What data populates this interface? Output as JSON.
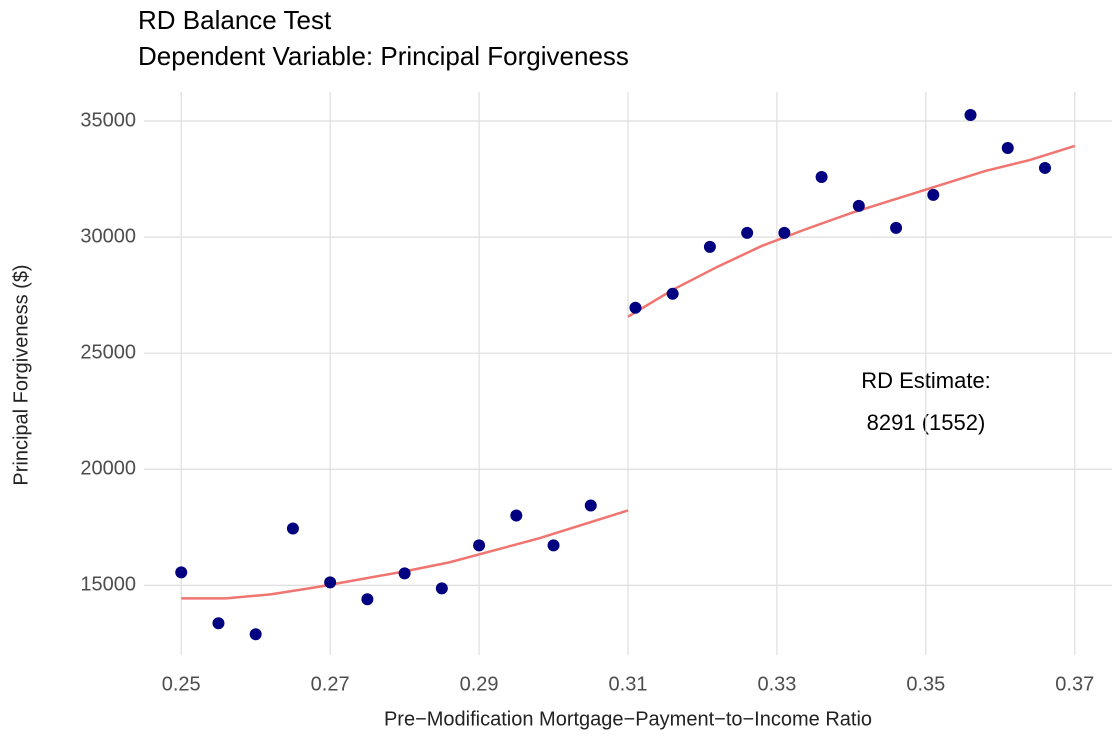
{
  "chart_data": {
    "type": "scatter",
    "title": "RD Balance Test",
    "subtitle": "Dependent Variable: Principal Forgiveness",
    "x_label": "Pre−Modification Mortgage−Payment−to−Income Ratio",
    "y_label": "Principal Forgiveness ($)",
    "annotation": [
      "RD Estimate:",
      "8291 (1552)"
    ],
    "xlim": [
      0.245,
      0.375
    ],
    "ylim": [
      12000,
      36250
    ],
    "xticks": [
      0.25,
      0.27,
      0.29,
      0.31,
      0.33,
      0.35,
      0.37
    ],
    "yticks": [
      15000,
      20000,
      25000,
      30000,
      35000
    ],
    "grid": true,
    "color": "#000080",
    "x": [
      0.25,
      0.255,
      0.26,
      0.265,
      0.27,
      0.275,
      0.28,
      0.285,
      0.29,
      0.295,
      0.3,
      0.305,
      0.311,
      0.316,
      0.321,
      0.326,
      0.331,
      0.336,
      0.341,
      0.346,
      0.351,
      0.356,
      0.361,
      0.366
    ],
    "values": [
      15560,
      13366,
      12892,
      17450,
      15130,
      14400,
      15516,
      14871,
      16720,
      18011,
      16720,
      18441,
      26957,
      27559,
      29581,
      30183,
      30183,
      32591,
      31344,
      30398,
      31817,
      35258,
      33839,
      32979
    ],
    "fits": [
      {
        "color": "#f07470",
        "x": [
          0.25,
          0.256,
          0.262,
          0.268,
          0.274,
          0.28,
          0.286,
          0.292,
          0.298,
          0.304,
          0.31
        ],
        "values": [
          14441,
          14441,
          14613,
          14914,
          15258,
          15602,
          15989,
          16505,
          17022,
          17624,
          18226
        ]
      },
      {
        "color": "#f07470",
        "x": [
          0.31,
          0.316,
          0.322,
          0.328,
          0.334,
          0.34,
          0.346,
          0.352,
          0.358,
          0.364,
          0.37
        ],
        "values": [
          26570,
          27731,
          28720,
          29624,
          30355,
          31043,
          31645,
          32247,
          32849,
          33323,
          33925
        ]
      }
    ]
  }
}
